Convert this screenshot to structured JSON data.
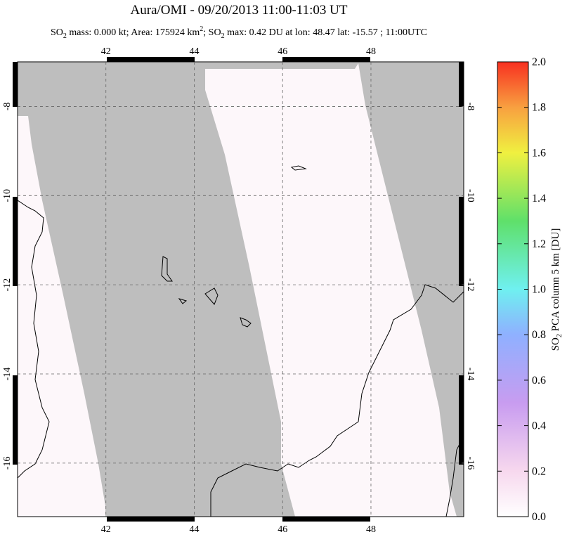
{
  "chart_data": {
    "type": "map",
    "title": "Aura/OMI - 09/20/2013 11:00-11:03 UT",
    "subtitle_parts": [
      "SO",
      "2",
      " mass: 0.000 kt; Area: 175924 km",
      "2",
      "; SO",
      "2",
      " max: 0.42 DU at lon: 48.47 lat: -15.57 ; 11:00UTC"
    ],
    "xlim": [
      40,
      50.1
    ],
    "ylim": [
      -17.2,
      -7
    ],
    "xticks": [
      42,
      44,
      46,
      48
    ],
    "yticks": [
      -8,
      -10,
      -12,
      -14,
      -16
    ],
    "grid": true,
    "colorbar": {
      "label_parts": [
        "SO",
        "2",
        " PCA column 5 km [DU]"
      ],
      "lim": [
        0,
        2
      ],
      "ticks": [
        {
          "value": 0,
          "label": "0.0"
        },
        {
          "value": 0.2,
          "label": "0.2"
        },
        {
          "value": 0.4,
          "label": "0.4"
        },
        {
          "value": 0.6,
          "label": "0.6"
        },
        {
          "value": 0.8,
          "label": "0.8"
        },
        {
          "value": 1,
          "label": "1.0"
        },
        {
          "value": 1.2,
          "label": "1.2"
        },
        {
          "value": 1.4,
          "label": "1.4"
        },
        {
          "value": 1.6,
          "label": "1.6"
        },
        {
          "value": 1.8,
          "label": "1.8"
        },
        {
          "value": 2,
          "label": "2.0"
        }
      ]
    }
  }
}
